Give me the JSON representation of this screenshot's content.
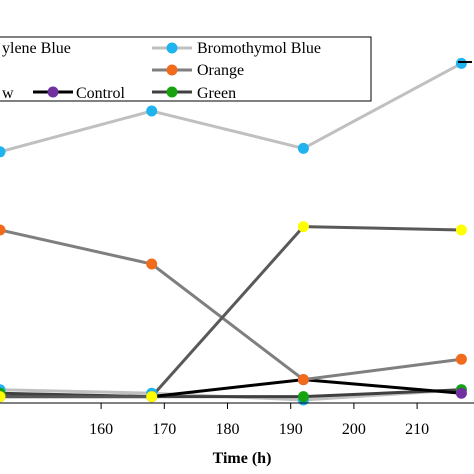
{
  "chart_data": {
    "type": "line",
    "xlabel": "Time (h)",
    "ylabel": "",
    "xlim": [
      144,
      219
    ],
    "ylim": [
      0,
      100
    ],
    "x_ticks": [
      "160",
      "170",
      "180",
      "190",
      "200",
      "210"
    ],
    "grid": false,
    "legend_position": "top",
    "legend_partial_labels": [
      "ylene Blue",
      "w"
    ],
    "series": [
      {
        "name": "Bromothymol Blue",
        "color": "#1fb4ee",
        "line_color": "#c0c0c0",
        "x": [
          144,
          168,
          192,
          217
        ],
        "y": [
          73,
          85,
          74,
          99
        ]
      },
      {
        "name": "Orange",
        "color": "#f26b1d",
        "line_color": "#7f7f7f",
        "x": [
          144,
          168,
          192,
          217
        ],
        "y": [
          50,
          40,
          6,
          12
        ]
      },
      {
        "name": "Control",
        "color": "#7030a0",
        "line_color": "#000000",
        "x": [
          144,
          168,
          192,
          217
        ],
        "y": [
          1,
          1,
          6,
          2
        ]
      },
      {
        "name": "Green",
        "color": "#16a30f",
        "line_color": "#404040",
        "x": [
          144,
          168,
          192,
          217
        ],
        "y": [
          2,
          1,
          1,
          3
        ]
      },
      {
        "name": "",
        "color": "#ffff00",
        "line_color": "#595959",
        "x": [
          144,
          168,
          192,
          217
        ],
        "y": [
          1,
          1,
          51,
          50
        ]
      },
      {
        "name": "",
        "color": "#1fb4ee",
        "line_color": "#c0c0c0",
        "x": [
          144,
          168,
          192,
          217
        ],
        "y": [
          3,
          2,
          0,
          3
        ]
      }
    ]
  }
}
